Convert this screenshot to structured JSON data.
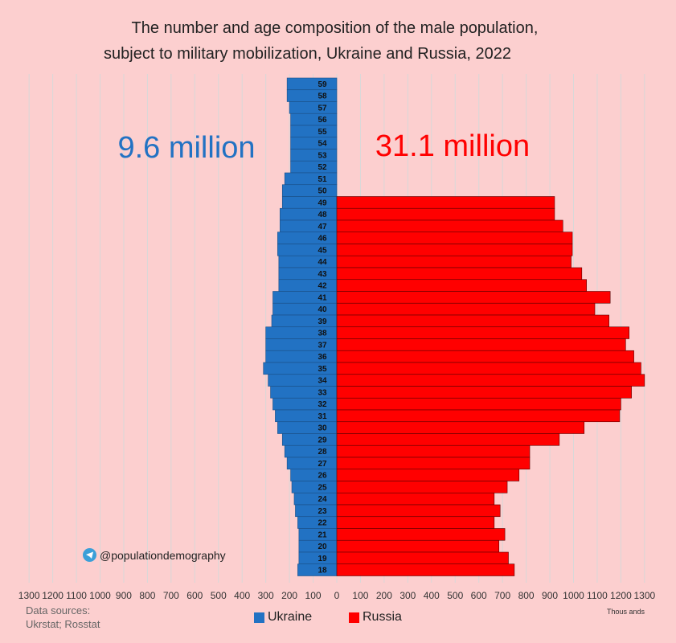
{
  "title_line1": "The number and age composition of the male population,",
  "title_line2": "subject to military mobilization, Ukraine and Russia, 2022",
  "totals": {
    "ukraine": "9.6 million",
    "russia": "31.1 million"
  },
  "handle": "@populationdemography",
  "sources_label": "Data sources:",
  "sources": "Ukrstat; Rosstat",
  "units": "Thous ands",
  "legend": [
    {
      "name": "Ukraine",
      "color": "#2272c3"
    },
    {
      "name": "Russia",
      "color": "#ff0000"
    }
  ],
  "colors": {
    "ukraine": "#2272c3",
    "russia": "#ff0000",
    "background": "#fccfcf",
    "grid": "#d8d8d8"
  },
  "chart_data": {
    "type": "bar",
    "orientation": "horizontal-population-pyramid",
    "title": "The number and age composition of the male population, subject to military mobilization, Ukraine and Russia, 2022",
    "xlabel": "Thous ands",
    "xlim": [
      -1300,
      1300
    ],
    "xticks": [
      "1300",
      "1200",
      "1100",
      "1000",
      "900",
      "800",
      "700",
      "600",
      "500",
      "400",
      "300",
      "200",
      "100",
      "0",
      "100",
      "200",
      "300",
      "400",
      "500",
      "600",
      "700",
      "800",
      "900",
      "1000",
      "1100",
      "1200",
      "1300"
    ],
    "categories": [
      "59",
      "58",
      "57",
      "56",
      "55",
      "54",
      "53",
      "52",
      "51",
      "50",
      "49",
      "48",
      "47",
      "46",
      "45",
      "44",
      "43",
      "42",
      "41",
      "40",
      "39",
      "38",
      "37",
      "36",
      "35",
      "34",
      "33",
      "32",
      "31",
      "30",
      "29",
      "28",
      "27",
      "26",
      "25",
      "24",
      "23",
      "22",
      "21",
      "20",
      "19",
      "18"
    ],
    "series": [
      {
        "name": "Ukraine",
        "side": "left",
        "values": [
          210,
          210,
          200,
          195,
          195,
          195,
          195,
          195,
          220,
          230,
          230,
          240,
          240,
          250,
          250,
          245,
          245,
          245,
          270,
          270,
          275,
          300,
          300,
          300,
          310,
          290,
          280,
          270,
          260,
          250,
          230,
          220,
          210,
          195,
          190,
          180,
          175,
          165,
          160,
          160,
          160,
          165
        ]
      },
      {
        "name": "Russia",
        "side": "right",
        "values": [
          0,
          0,
          0,
          0,
          0,
          0,
          0,
          0,
          0,
          0,
          920,
          920,
          955,
          995,
          995,
          990,
          1035,
          1055,
          1155,
          1090,
          1150,
          1235,
          1220,
          1255,
          1285,
          1300,
          1245,
          1200,
          1195,
          1045,
          940,
          815,
          815,
          770,
          720,
          665,
          690,
          665,
          710,
          685,
          725,
          750
        ]
      }
    ]
  }
}
